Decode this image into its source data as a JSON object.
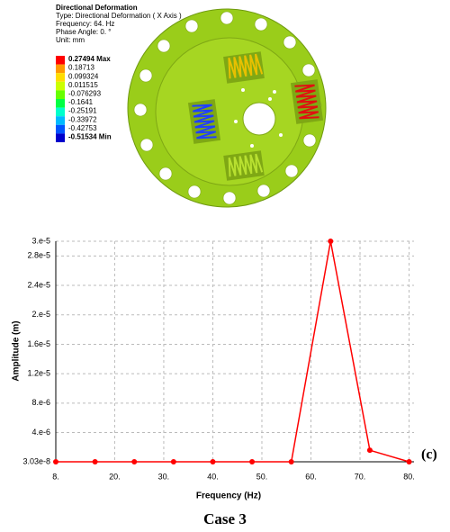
{
  "figure": {
    "title": "Directional Deformation",
    "lines": [
      "Type: Directional Deformation ( X Axis )",
      "Frequency: 64. Hz",
      "Phase Angle: 0. °",
      "Unit: mm"
    ],
    "levels": [
      {
        "label": "0.27494 Max",
        "color": "#ff0000"
      },
      {
        "label": "0.18713",
        "color": "#ff9900"
      },
      {
        "label": "0.099324",
        "color": "#ffdd00"
      },
      {
        "label": "0.011515",
        "color": "#ccff00"
      },
      {
        "label": "-0.076293",
        "color": "#66ff00"
      },
      {
        "label": "-0.1641",
        "color": "#00ff44"
      },
      {
        "label": "-0.25191",
        "color": "#00ffcc"
      },
      {
        "label": "-0.33972",
        "color": "#00bbff"
      },
      {
        "label": "-0.42753",
        "color": "#0055ff"
      },
      {
        "label": "-0.51534 Min",
        "color": "#0000cc"
      }
    ]
  },
  "chart_data": {
    "type": "line",
    "x_label": "Frequency (Hz)",
    "y_label": "Amplitude (m)",
    "x": [
      8,
      16,
      24,
      32,
      40,
      48,
      56,
      64,
      72,
      80
    ],
    "values": [
      3.03e-08,
      3.03e-08,
      3.03e-08,
      3.03e-08,
      3.03e-08,
      3.03e-08,
      3.03e-08,
      3e-05,
      1.6e-06,
      3.03e-08
    ],
    "color": "#ff0000",
    "xlim": [
      8,
      81
    ],
    "xticks": [
      {
        "value": 8,
        "label": "8."
      },
      {
        "value": 20,
        "label": "20."
      },
      {
        "value": 30,
        "label": "30."
      },
      {
        "value": 40,
        "label": "40."
      },
      {
        "value": 50,
        "label": "50."
      },
      {
        "value": 60,
        "label": "60."
      },
      {
        "value": 70,
        "label": "70."
      },
      {
        "value": 80,
        "label": "80."
      }
    ],
    "ylim": [
      3.03e-08,
      3e-05
    ],
    "yticks": [
      {
        "value": 3.03e-08,
        "label": "3.03e-8"
      },
      {
        "value": 4e-06,
        "label": "4.e-6"
      },
      {
        "value": 8e-06,
        "label": "8.e-6"
      },
      {
        "value": 1.2e-05,
        "label": "1.2e-5"
      },
      {
        "value": 1.6e-05,
        "label": "1.6e-5"
      },
      {
        "value": 2e-05,
        "label": "2.e-5"
      },
      {
        "value": 2.4e-05,
        "label": "2.4e-5"
      },
      {
        "value": 2.8e-05,
        "label": "2.8e-5"
      },
      {
        "value": 3e-05,
        "label": "3.e-5"
      }
    ],
    "grid": true
  },
  "panel_label": "(c)",
  "caption": "Case 3"
}
